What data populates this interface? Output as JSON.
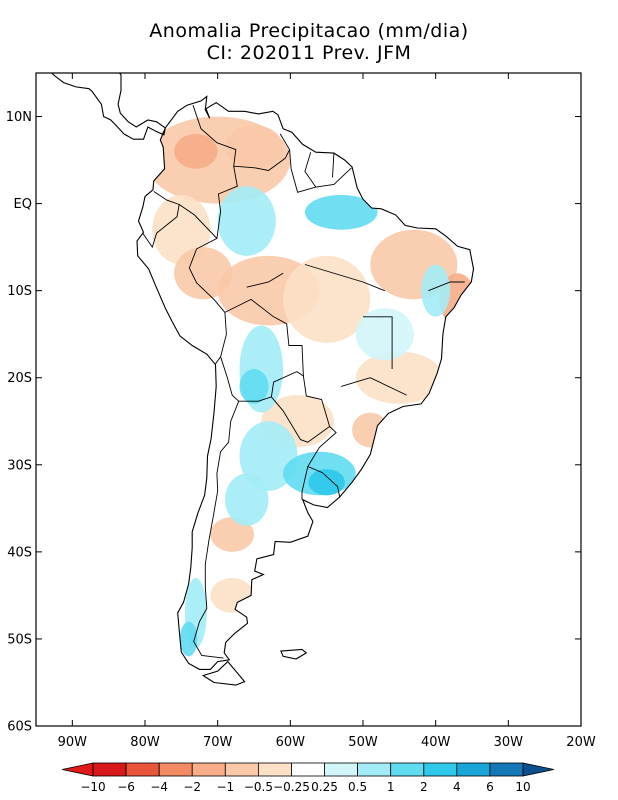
{
  "title": "Anomalia Precipitacao (mm/dia)",
  "subtitle": "CI: 202011 Prev. JFM",
  "map": {
    "lon_range": [
      -95,
      -20
    ],
    "lat_range": [
      -60,
      15
    ],
    "lat_ticks": [
      {
        "value": 10,
        "label": "10N"
      },
      {
        "value": 0,
        "label": "EQ"
      },
      {
        "value": -10,
        "label": "10S"
      },
      {
        "value": -20,
        "label": "20S"
      },
      {
        "value": -30,
        "label": "30S"
      },
      {
        "value": -40,
        "label": "40S"
      },
      {
        "value": -50,
        "label": "50S"
      },
      {
        "value": -60,
        "label": "60S"
      }
    ],
    "lon_ticks": [
      {
        "value": -90,
        "label": "90W"
      },
      {
        "value": -80,
        "label": "80W"
      },
      {
        "value": -70,
        "label": "70W"
      },
      {
        "value": -60,
        "label": "60W"
      },
      {
        "value": -50,
        "label": "50W"
      },
      {
        "value": -40,
        "label": "40W"
      },
      {
        "value": -30,
        "label": "30W"
      },
      {
        "value": -20,
        "label": "20W"
      }
    ]
  },
  "colorbar": {
    "labels": [
      "−10",
      "−6",
      "−4",
      "−2",
      "−1",
      "−0.5",
      "−0.25",
      "0.25",
      "0.5",
      "1",
      "2",
      "4",
      "6",
      "10"
    ],
    "colors": [
      "#d7191c",
      "#e9553a",
      "#f28a63",
      "#f6ad88",
      "#f9c9a8",
      "#fbe0c6",
      "#ffffff",
      "#d2f5fa",
      "#a3ecf6",
      "#5fdcf0",
      "#2ec8ea",
      "#1aa5d9",
      "#1477b6"
    ],
    "low_color": "#e01a1a",
    "high_color": "#0b4f8c"
  }
}
